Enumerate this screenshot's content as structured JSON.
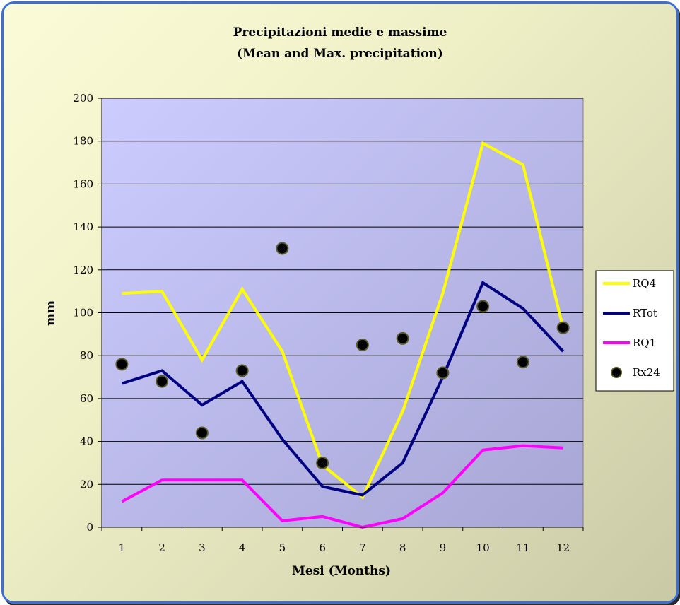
{
  "chart_data": {
    "type": "line",
    "title": "Precipitazioni medie e massime",
    "subtitle": "(Mean and Max. precipitation)",
    "xlabel": "Mesi (Months)",
    "ylabel": "mm",
    "categories": [
      "1",
      "2",
      "3",
      "4",
      "5",
      "6",
      "7",
      "8",
      "9",
      "10",
      "11",
      "12"
    ],
    "ylim": [
      0,
      200
    ],
    "yticks": [
      "0",
      "20",
      "40",
      "60",
      "80",
      "100",
      "120",
      "140",
      "160",
      "180",
      "200"
    ],
    "grid": true,
    "legend_position": "right",
    "series": [
      {
        "name": "RQ4",
        "kind": "line",
        "color": "#ffff00",
        "values": [
          109,
          110,
          78,
          111,
          82,
          29,
          14,
          54,
          109,
          179,
          169,
          93
        ]
      },
      {
        "name": "RTot",
        "kind": "line",
        "color": "#000080",
        "values": [
          67,
          73,
          57,
          68,
          41,
          19,
          15,
          30,
          70,
          114,
          102,
          82
        ]
      },
      {
        "name": "RQ1",
        "kind": "line",
        "color": "#ff00ff",
        "values": [
          12,
          22,
          22,
          22,
          3,
          5,
          0,
          4,
          16,
          36,
          38,
          37
        ]
      },
      {
        "name": "Rx24",
        "kind": "scatter",
        "color": "#000000",
        "values": [
          76,
          68,
          44,
          73,
          130,
          30,
          85,
          88,
          72,
          103,
          77,
          93
        ]
      }
    ]
  }
}
